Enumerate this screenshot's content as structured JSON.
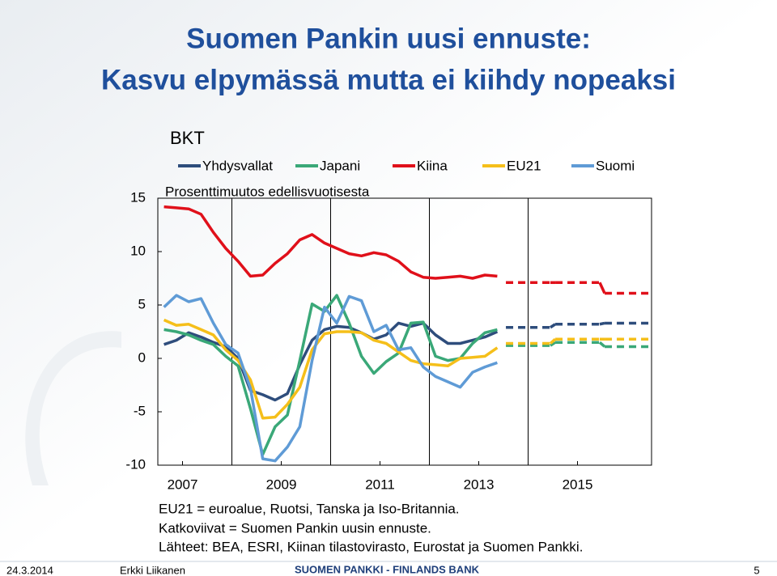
{
  "slide_title": [
    "Suomen Pankin uusi ennuste:",
    "Kasvu elpymässä mutta ei kiihdy nopeaksi"
  ],
  "chart_data": {
    "type": "line",
    "title": "BKT",
    "subtitle": "Prosenttimuutos edellisvuotisesta",
    "x": [
      2006.625,
      2006.875,
      2007.125,
      2007.375,
      2007.625,
      2007.875,
      2008.125,
      2008.375,
      2008.625,
      2008.875,
      2009.125,
      2009.375,
      2009.625,
      2009.875,
      2010.125,
      2010.375,
      2010.625,
      2010.875,
      2011.125,
      2011.375,
      2011.625,
      2011.875,
      2012.125,
      2012.375,
      2012.625,
      2012.875,
      2013.125,
      2013.375
    ],
    "xlim": [
      2006.5,
      2016.5
    ],
    "xticks": [
      2007,
      2009,
      2011,
      2013,
      2015
    ],
    "ylim": [
      -10,
      15
    ],
    "yticks": [
      -10,
      -5,
      0,
      5,
      10,
      15
    ],
    "forecast_x": [
      2014,
      2015,
      2016
    ],
    "series": [
      {
        "name": "Yhdysvallat",
        "color": "#2e4d7c",
        "values": [
          1.3,
          1.7,
          2.4,
          2.0,
          1.5,
          1.1,
          0.0,
          -3.0,
          -3.4,
          -3.9,
          -3.3,
          -0.6,
          1.7,
          2.7,
          3.0,
          2.9,
          2.4,
          1.8,
          2.2,
          3.3,
          3.0,
          3.3,
          2.2,
          1.4,
          1.4,
          1.7,
          2.0,
          2.5
        ],
        "forecast": [
          2.9,
          3.2,
          3.3
        ]
      },
      {
        "name": "Japani",
        "color": "#3aa878",
        "values": [
          2.7,
          2.5,
          2.2,
          1.7,
          1.3,
          0.2,
          -0.7,
          -4.7,
          -9.0,
          -6.4,
          -5.3,
          -0.2,
          5.1,
          4.4,
          5.9,
          3.3,
          0.2,
          -1.4,
          -0.3,
          0.5,
          3.3,
          3.4,
          0.2,
          -0.2,
          0.0,
          1.4,
          2.4,
          2.7
        ],
        "forecast": [
          1.2,
          1.5,
          1.1
        ]
      },
      {
        "name": "Kiina",
        "color": "#e0101a",
        "values": [
          14.2,
          14.1,
          14.0,
          13.5,
          11.8,
          10.3,
          9.1,
          7.7,
          7.8,
          8.9,
          9.8,
          11.1,
          11.6,
          10.8,
          10.3,
          9.8,
          9.6,
          9.9,
          9.7,
          9.1,
          8.1,
          7.6,
          7.5,
          7.6,
          7.7,
          7.5,
          7.8,
          7.7
        ],
        "forecast": [
          7.1,
          7.1,
          6.1
        ]
      },
      {
        "name": "EU21",
        "color": "#f5bf1a",
        "values": [
          3.6,
          3.1,
          3.2,
          2.7,
          2.2,
          0.8,
          -0.2,
          -2.0,
          -5.6,
          -5.5,
          -4.3,
          -2.7,
          0.8,
          2.3,
          2.5,
          2.5,
          2.4,
          1.7,
          1.4,
          0.6,
          -0.2,
          -0.5,
          -0.6,
          -0.7,
          0.0,
          0.1,
          0.2,
          1.0
        ],
        "forecast": [
          1.4,
          1.8,
          1.8
        ]
      },
      {
        "name": "Suomi",
        "color": "#5f9bd6",
        "values": [
          4.8,
          5.9,
          5.3,
          5.6,
          3.3,
          1.3,
          0.5,
          -2.8,
          -9.4,
          -9.6,
          -8.3,
          -6.4,
          -0.2,
          4.8,
          3.3,
          5.8,
          5.4,
          2.5,
          3.1,
          0.8,
          1.0,
          -0.8,
          -1.7,
          -2.2,
          -2.7,
          -1.3,
          -0.8,
          -0.4
        ]
      }
    ]
  },
  "notes": [
    "EU21 = euroalue, Ruotsi, Tanska ja Iso-Britannia.",
    "Katkoviivat = Suomen Pankin uusin ennuste.",
    "Lähteet: BEA, ESRI, Kiinan tilastovirasto, Eurostat ja Suomen Pankki."
  ],
  "footer": {
    "date": "24.3.2014",
    "author": "Erkki Liikanen",
    "organization": "SUOMEN PANKKI - FINLANDS BANK",
    "page": "5"
  }
}
